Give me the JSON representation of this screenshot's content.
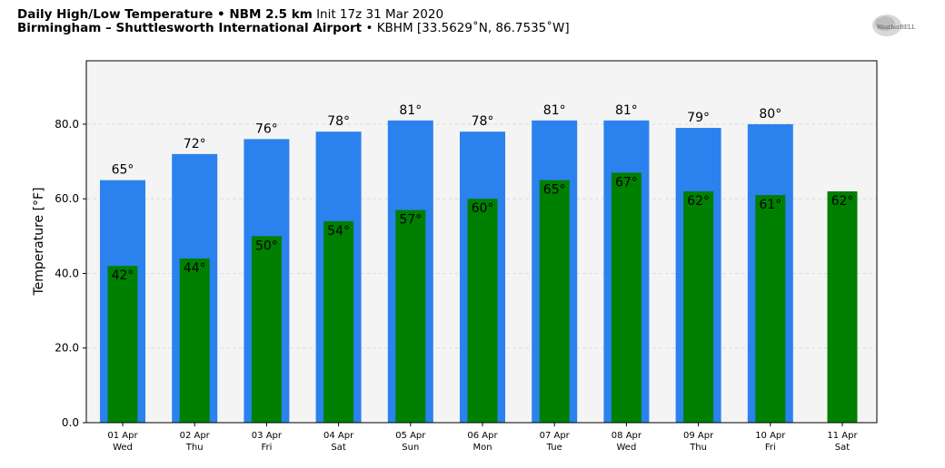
{
  "header": {
    "line1_bold": "Daily High/Low Temperature • NBM 2.5 km",
    "line1_normal": "Init 17z 31 Mar 2020",
    "line2_bold": "Birmingham – Shuttlesworth International Airport",
    "line2_normal": "• KBHM [33.5629˚N, 86.7535˚W]",
    "logo_text": "WeatherBELL"
  },
  "chart_data": {
    "type": "bar",
    "ylabel": "Temperature [°F]",
    "ylim": [
      0,
      97
    ],
    "yticks": [
      "0.0",
      "20.0",
      "40.0",
      "60.0",
      "80.0"
    ],
    "ytick_values": [
      0,
      20,
      40,
      60,
      80
    ],
    "grid": true,
    "categories": [
      [
        "01 Apr",
        "Wed"
      ],
      [
        "02 Apr",
        "Thu"
      ],
      [
        "03 Apr",
        "Fri"
      ],
      [
        "04 Apr",
        "Sat"
      ],
      [
        "05 Apr",
        "Sun"
      ],
      [
        "06 Apr",
        "Mon"
      ],
      [
        "07 Apr",
        "Tue"
      ],
      [
        "08 Apr",
        "Wed"
      ],
      [
        "09 Apr",
        "Thu"
      ],
      [
        "10 Apr",
        "Fri"
      ],
      [
        "11 Apr",
        "Sat"
      ]
    ],
    "series": [
      {
        "values": [
          65,
          72,
          76,
          78,
          81,
          78,
          81,
          81,
          79,
          80,
          null
        ],
        "labels": [
          "65°",
          "72°",
          "76°",
          "78°",
          "81°",
          "78°",
          "81°",
          "81°",
          "79°",
          "80°",
          ""
        ],
        "color": "#2b82ee"
      },
      {
        "values": [
          42,
          44,
          50,
          54,
          57,
          60,
          65,
          67,
          62,
          61,
          62
        ],
        "labels": [
          "42°",
          "44°",
          "50°",
          "54°",
          "57°",
          "60°",
          "65°",
          "67°",
          "62°",
          "61°",
          "62°"
        ],
        "color": "#008000"
      }
    ],
    "plot_background": "#f4f4f4"
  }
}
